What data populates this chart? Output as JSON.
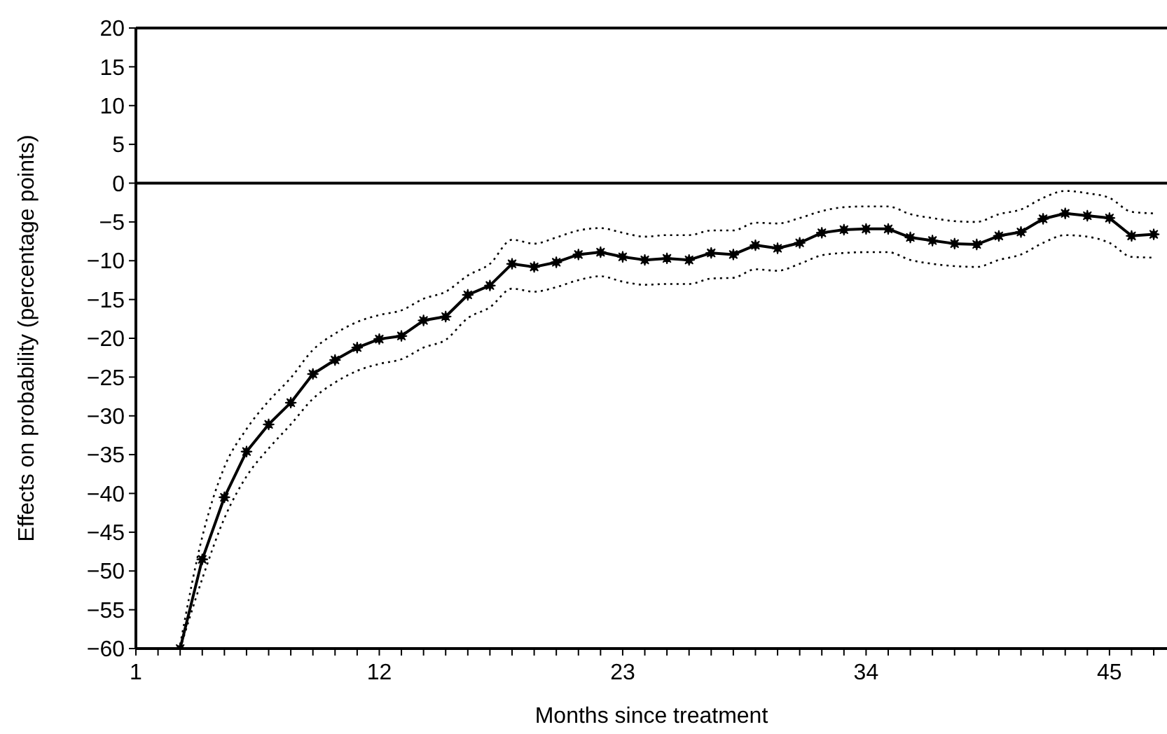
{
  "chart_data": {
    "type": "line",
    "xlabel": "Months since treatment",
    "ylabel": "Effects on probability (percentage points)",
    "x": [
      3,
      4,
      5,
      6,
      7,
      8,
      9,
      10,
      11,
      12,
      13,
      14,
      15,
      16,
      17,
      18,
      19,
      20,
      21,
      22,
      23,
      24,
      25,
      26,
      27,
      28,
      29,
      30,
      31,
      32,
      33,
      34,
      35,
      36,
      37,
      38,
      39,
      40,
      41,
      42,
      43,
      44,
      45,
      46,
      47
    ],
    "series": [
      {
        "color": "#000000",
        "marker": "star",
        "line_style": "solid",
        "values": [
          -60,
          -48.5,
          -40.5,
          -34.6,
          -31.1,
          -28.3,
          -24.6,
          -22.8,
          -21.2,
          -20.1,
          -19.7,
          -17.7,
          -17.2,
          -14.4,
          -13.2,
          -10.4,
          -10.8,
          -10.2,
          -9.2,
          -8.9,
          -9.5,
          -9.9,
          -9.7,
          -9.9,
          -9.0,
          -9.2,
          -8.0,
          -8.4,
          -7.7,
          -6.4,
          -6.0,
          -5.9,
          -5.9,
          -7.0,
          -7.4,
          -7.8,
          -7.9,
          -6.8,
          -6.3,
          -4.6,
          -3.9,
          -4.2,
          -4.5,
          -6.8,
          -6.6
        ]
      },
      {
        "color": "#000000",
        "marker": "none",
        "line_style": "dotted",
        "values": [
          -59.5,
          -45.6,
          -36.6,
          -31.7,
          -28.1,
          -25.1,
          -21.5,
          -19.4,
          -17.9,
          -17,
          -16.4,
          -14.9,
          -14,
          -11.9,
          -10.4,
          -7.3,
          -7.8,
          -7.0,
          -6.1,
          -5.8,
          -6.4,
          -6.9,
          -6.7,
          -6.7,
          -6.1,
          -6.1,
          -5.1,
          -5.2,
          -4.5,
          -3.6,
          -3.1,
          -3.0,
          -3.0,
          -4.0,
          -4.5,
          -4.9,
          -5.0,
          -4.0,
          -3.4,
          -1.9,
          -1.0,
          -1.3,
          -1.9,
          -3.7,
          -3.9
        ]
      },
      {
        "color": "#000000",
        "marker": "none",
        "line_style": "dotted",
        "values": [
          -60,
          -51,
          -43.2,
          -37.8,
          -34.2,
          -31.1,
          -27.8,
          -25.7,
          -24.2,
          -23.3,
          -22.7,
          -21.2,
          -20.2,
          -17.4,
          -16,
          -13.6,
          -14,
          -13.4,
          -12.5,
          -12,
          -12.7,
          -13.1,
          -13,
          -13,
          -12.3,
          -12.2,
          -11.1,
          -11.3,
          -10.4,
          -9.3,
          -9.0,
          -8.9,
          -8.9,
          -9.9,
          -10.4,
          -10.7,
          -10.8,
          -9.9,
          -9.2,
          -7.7,
          -6.7,
          -6.9,
          -7.7,
          -9.5,
          -9.6
        ]
      }
    ],
    "xlim": [
      1,
      47.6
    ],
    "xticks": [
      1,
      {
        "value": 2,
        "label": null
      },
      {
        "value": 3,
        "label": null
      },
      {
        "value": 4,
        "label": null
      },
      {
        "value": 5,
        "label": null
      },
      {
        "value": 6,
        "label": null
      },
      {
        "value": 7,
        "label": null
      },
      {
        "value": 8,
        "label": null
      },
      {
        "value": 9,
        "label": null
      },
      {
        "value": 10,
        "label": null
      },
      {
        "value": 11,
        "label": null
      },
      12,
      {
        "value": 13,
        "label": null
      },
      {
        "value": 14,
        "label": null
      },
      {
        "value": 15,
        "label": null
      },
      {
        "value": 16,
        "label": null
      },
      {
        "value": 17,
        "label": null
      },
      {
        "value": 18,
        "label": null
      },
      {
        "value": 19,
        "label": null
      },
      {
        "value": 20,
        "label": null
      },
      {
        "value": 21,
        "label": null
      },
      {
        "value": 22,
        "label": null
      },
      23,
      {
        "value": 24,
        "label": null
      },
      {
        "value": 25,
        "label": null
      },
      {
        "value": 26,
        "label": null
      },
      {
        "value": 27,
        "label": null
      },
      {
        "value": 28,
        "label": null
      },
      {
        "value": 29,
        "label": null
      },
      {
        "value": 30,
        "label": null
      },
      {
        "value": 31,
        "label": null
      },
      {
        "value": 32,
        "label": null
      },
      {
        "value": 33,
        "label": null
      },
      34,
      {
        "value": 35,
        "label": null
      },
      {
        "value": 36,
        "label": null
      },
      {
        "value": 37,
        "label": null
      },
      {
        "value": 38,
        "label": null
      },
      {
        "value": 39,
        "label": null
      },
      {
        "value": 40,
        "label": null
      },
      {
        "value": 41,
        "label": null
      },
      {
        "value": 42,
        "label": null
      },
      {
        "value": 43,
        "label": null
      },
      {
        "value": 44,
        "label": null
      },
      45,
      {
        "value": 46,
        "label": null
      },
      {
        "value": 47,
        "label": null
      }
    ],
    "ylim": [
      -60,
      20
    ],
    "yticks": [
      -60,
      -55,
      -50,
      -45,
      -40,
      -35,
      -30,
      -25,
      -20,
      -15,
      -10,
      -5,
      0,
      5,
      10,
      15,
      20
    ],
    "ref_lines": [
      {
        "axis": "y",
        "value": 0,
        "color": "#000000",
        "line_style": "solid"
      }
    ]
  }
}
